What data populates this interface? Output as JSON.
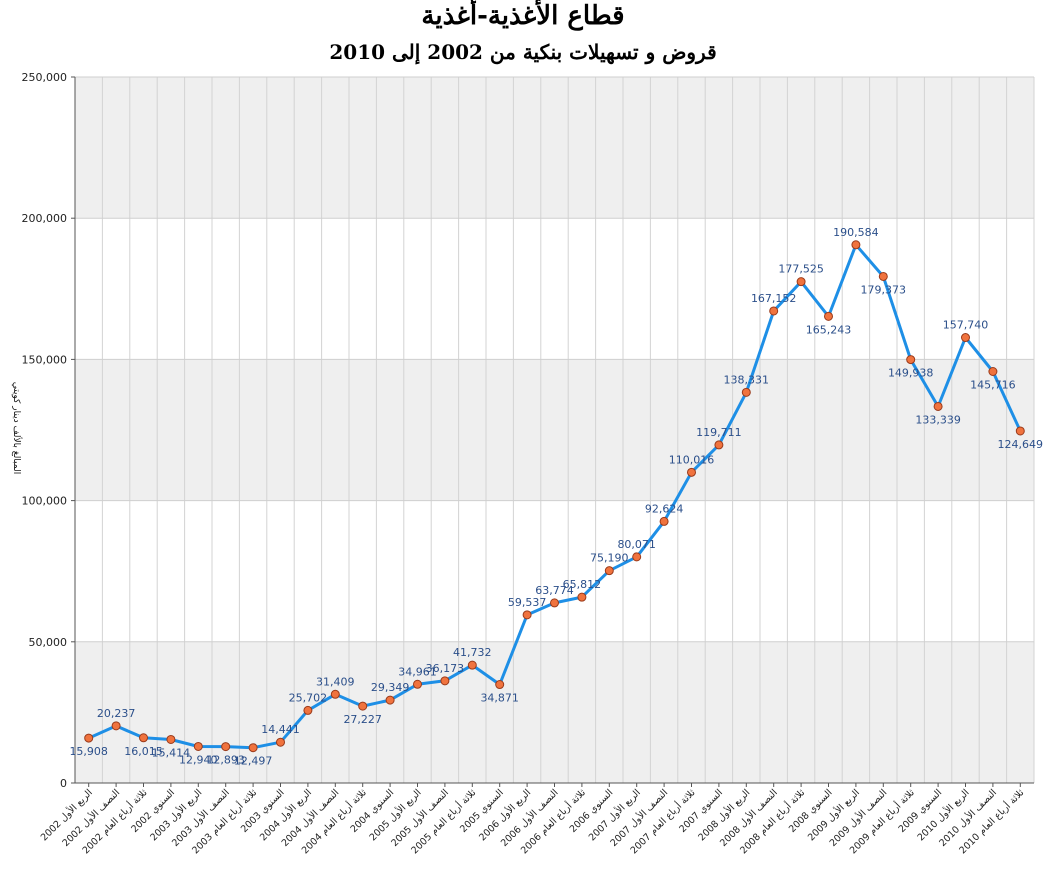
{
  "chart_data": {
    "type": "line",
    "title": "قطاع الأغذية-أغذية",
    "subtitle": "قروض و تسهيلات بنكية من 2002 إلى 2010",
    "ylabel": "المبالغ بالألف دينار كويتي",
    "xlabel": "",
    "ylim": [
      0,
      250000
    ],
    "yticks": [
      "0",
      "50,000",
      "100,000",
      "150,000",
      "200,000",
      "250,000"
    ],
    "grid": true,
    "legend": "none",
    "colors": {
      "line": "#1e8fe6",
      "marker_fill": "#f0733e",
      "marker_stroke": "#9a3a1a",
      "band": "#efefef"
    },
    "categories": [
      "2002 الربع الأول",
      "2002 النصف الأول",
      "2002 ثلاثة أرباع العام",
      "2002 السنوي",
      "2003 الربع الأول",
      "2003 النصف الأول",
      "2003 ثلاثة أرباع العام",
      "2003 السنوي",
      "2004 الربع الأول",
      "2004 النصف الأول",
      "2004 ثلاثة أرباع العام",
      "2004 السنوي",
      "2005 الربع الأول",
      "2005 النصف الأول",
      "2005 ثلاثة أرباع العام",
      "2005 السنوي",
      "2006 الربع الأول",
      "2006 النصف الأول",
      "2006 ثلاثة أرباع العام",
      "2006 السنوي",
      "2007 الربع الأول",
      "2007 النصف الأول",
      "2007 ثلاثة أرباع العام",
      "2007 السنوي",
      "2008 الربع الأول",
      "2008 النصف الأول",
      "2008 ثلاثة أرباع العام",
      "2008 السنوي",
      "2009 الربع الأول",
      "2009 النصف الأول",
      "2009 ثلاثة أرباع العام",
      "2009 السنوي",
      "2010 الربع الأول",
      "2010 النصف الأول",
      "2010 ثلاثة أرباع العام"
    ],
    "values": [
      15908,
      20237,
      16015,
      15414,
      12940,
      12893,
      12497,
      14441,
      25702,
      31409,
      27227,
      29349,
      34961,
      36173,
      41732,
      34871,
      59537,
      63774,
      65812,
      75190,
      80071,
      92624,
      110016,
      119711,
      138331,
      167152,
      177525,
      165243,
      190584,
      179373,
      149938,
      133339,
      157740,
      145716,
      124649
    ],
    "data_labels": [
      "15,908",
      "20,237",
      "16,015",
      "15,414",
      "12,940",
      "12,893",
      "12,497",
      "14,441",
      "25,702",
      "31,409",
      "27,227",
      "29,349",
      "34,961",
      "36,173",
      "41,732",
      "34,871",
      "59,537",
      "63,774",
      "65,812",
      "75,190",
      "80,071",
      "92,624",
      "110,016",
      "119,711",
      "138,331",
      "167,152",
      "177,525",
      "165,243",
      "190,584",
      "179,373",
      "149,938",
      "133,339",
      "157,740",
      "145,716",
      "124,649"
    ]
  }
}
